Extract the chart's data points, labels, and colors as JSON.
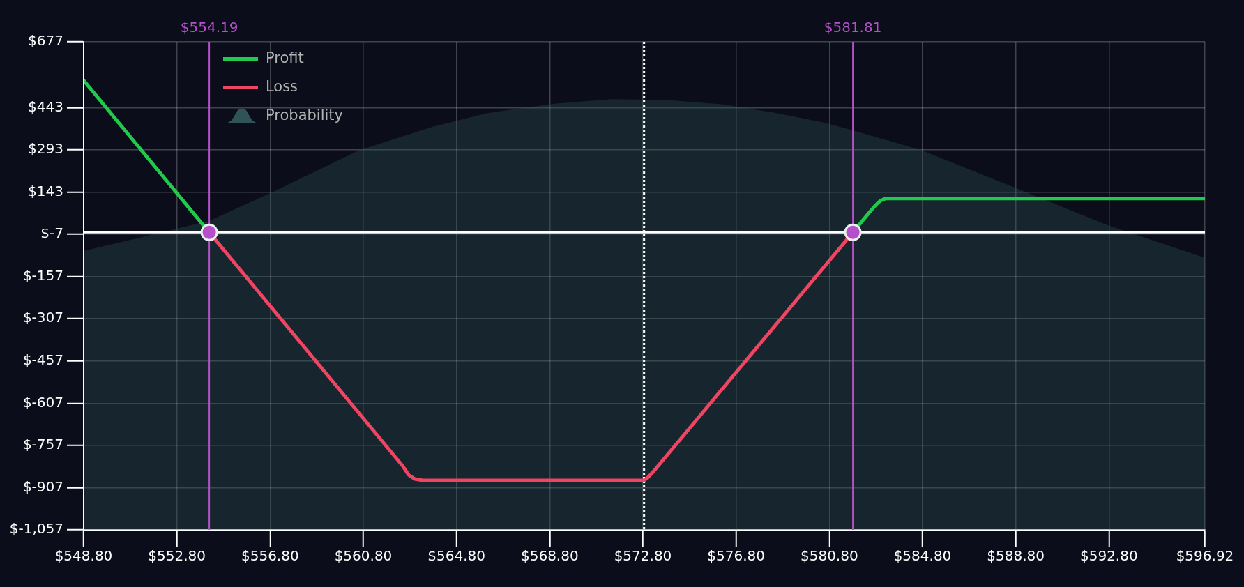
{
  "chart_data": {
    "type": "line",
    "legend": "top left",
    "grid": true,
    "xlim": [
      548.8,
      596.92
    ],
    "ylim": [
      -1057,
      677
    ],
    "xticks": [
      {
        "value": 548.8,
        "label": "$548.80"
      },
      {
        "value": 552.8,
        "label": "$552.80"
      },
      {
        "value": 556.8,
        "label": "$556.80"
      },
      {
        "value": 560.8,
        "label": "$560.80"
      },
      {
        "value": 564.8,
        "label": "$564.80"
      },
      {
        "value": 568.8,
        "label": "$568.80"
      },
      {
        "value": 572.8,
        "label": "$572.80"
      },
      {
        "value": 576.8,
        "label": "$576.80"
      },
      {
        "value": 580.8,
        "label": "$580.80"
      },
      {
        "value": 584.8,
        "label": "$584.80"
      },
      {
        "value": 588.8,
        "label": "$588.80"
      },
      {
        "value": 592.8,
        "label": "$592.80"
      },
      {
        "value": 596.92,
        "label": "$596.92"
      }
    ],
    "yticks": [
      {
        "value": 677,
        "label": "$677"
      },
      {
        "value": 443,
        "label": "$443"
      },
      {
        "value": 293,
        "label": "$293"
      },
      {
        "value": 143,
        "label": "$143"
      },
      {
        "value": -7,
        "label": "$-7"
      },
      {
        "value": -157,
        "label": "$-157"
      },
      {
        "value": -307,
        "label": "$-307"
      },
      {
        "value": -457,
        "label": "$-457"
      },
      {
        "value": -607,
        "label": "$-607"
      },
      {
        "value": -757,
        "label": "$-757"
      },
      {
        "value": -907,
        "label": "$-907"
      },
      {
        "value": -1057,
        "label": "$-1,057"
      }
    ],
    "series": [
      {
        "name": "Profit",
        "color": "#21c94c",
        "x": [
          548.8,
          554.19,
          568,
          581.81,
          582.5,
          582.8,
          583.0,
          583.2,
          596.92
        ],
        "values": [
          540,
          0,
          null,
          0,
          69,
          98,
          113,
          120,
          120
        ]
      },
      {
        "name": "Loss",
        "color": "#ee4562",
        "x": [
          554.19,
          562.5,
          562.75,
          563.0,
          563.35,
          572.85,
          573.0,
          573.25,
          581.81
        ],
        "values": [
          0,
          -831,
          -862,
          -876,
          -881,
          -881,
          -872,
          -850,
          0
        ]
      },
      {
        "name": "Probability",
        "type": "area",
        "color": "#2f5356",
        "x": [
          548.8,
          548.8,
          554.2,
          557.05,
          560.6,
          563.76,
          566.12,
          569.08,
          571.45,
          573.81,
          576.19,
          578.55,
          580.52,
          581.71,
          584.78,
          588.79,
          592.78,
          596.92,
          596.92
        ],
        "values": [
          -1057,
          -66,
          41,
          149,
          291,
          375,
          424,
          458,
          473,
          471,
          455,
          424,
          391,
          365,
          291,
          158,
          24,
          -90,
          -1057
        ]
      },
      {
        "type": "scatter",
        "marker": "circle",
        "color": "#b64fcc",
        "x": [
          554.19,
          581.81
        ],
        "values": [
          0,
          0
        ]
      }
    ],
    "ref_lines": [
      {
        "axis": "x",
        "value": 554.19,
        "label": "$554.19",
        "color": "#b64fcc"
      },
      {
        "axis": "x",
        "value": 581.81,
        "label": "$581.81",
        "color": "#b64fcc"
      },
      {
        "axis": "x",
        "value": 572.85,
        "color": "#ffffff",
        "line_style": "dotted"
      },
      {
        "axis": "y",
        "value": 0,
        "color": "#ffffff"
      }
    ]
  }
}
